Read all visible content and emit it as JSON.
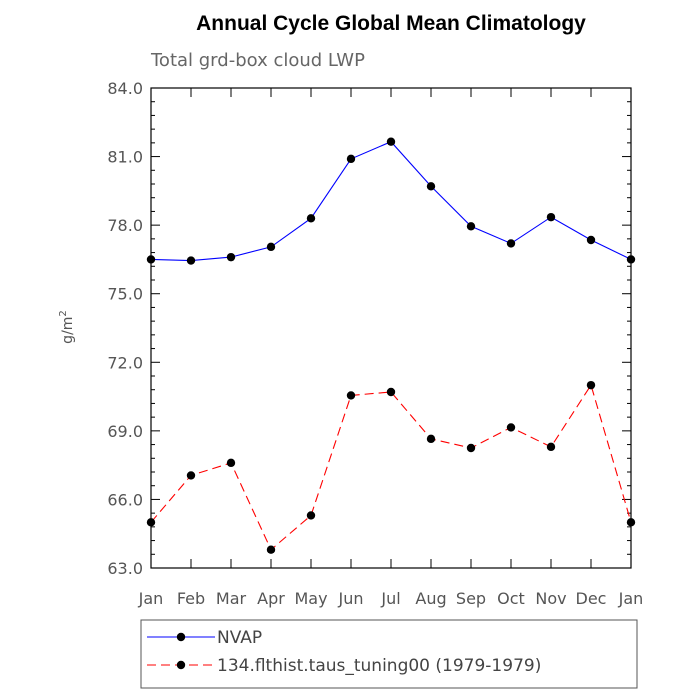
{
  "chart_data": {
    "type": "line",
    "title": "Annual Cycle Global Mean Climatology",
    "subtitle": "Total grd-box cloud LWP",
    "xlabel": "",
    "ylabel": "g/m",
    "ylabel_superscript": "2",
    "categories": [
      "Jan",
      "Feb",
      "Mar",
      "Apr",
      "May",
      "Jun",
      "Jul",
      "Aug",
      "Sep",
      "Oct",
      "Nov",
      "Dec",
      "Jan"
    ],
    "ylim": [
      63.0,
      84.0
    ],
    "yticks": [
      "63.0",
      "66.0",
      "69.0",
      "72.0",
      "75.0",
      "78.0",
      "81.0",
      "84.0"
    ],
    "grid": false,
    "legend_position": "bottom",
    "series": [
      {
        "name": "NVAP",
        "color": "#0000ff",
        "dash": "solid",
        "marker": "filled-circle",
        "values": [
          76.5,
          76.45,
          76.6,
          77.05,
          78.3,
          80.9,
          81.65,
          79.7,
          77.95,
          77.2,
          78.35,
          77.35,
          76.5
        ]
      },
      {
        "name": "134.flthist.taus_tuning00 (1979-1979)",
        "color": "#ff0000",
        "dash": "dashed",
        "marker": "filled-circle",
        "values": [
          65.0,
          67.05,
          67.6,
          63.8,
          65.3,
          70.55,
          70.7,
          68.65,
          68.25,
          69.15,
          68.3,
          71.0,
          65.0
        ]
      }
    ]
  }
}
